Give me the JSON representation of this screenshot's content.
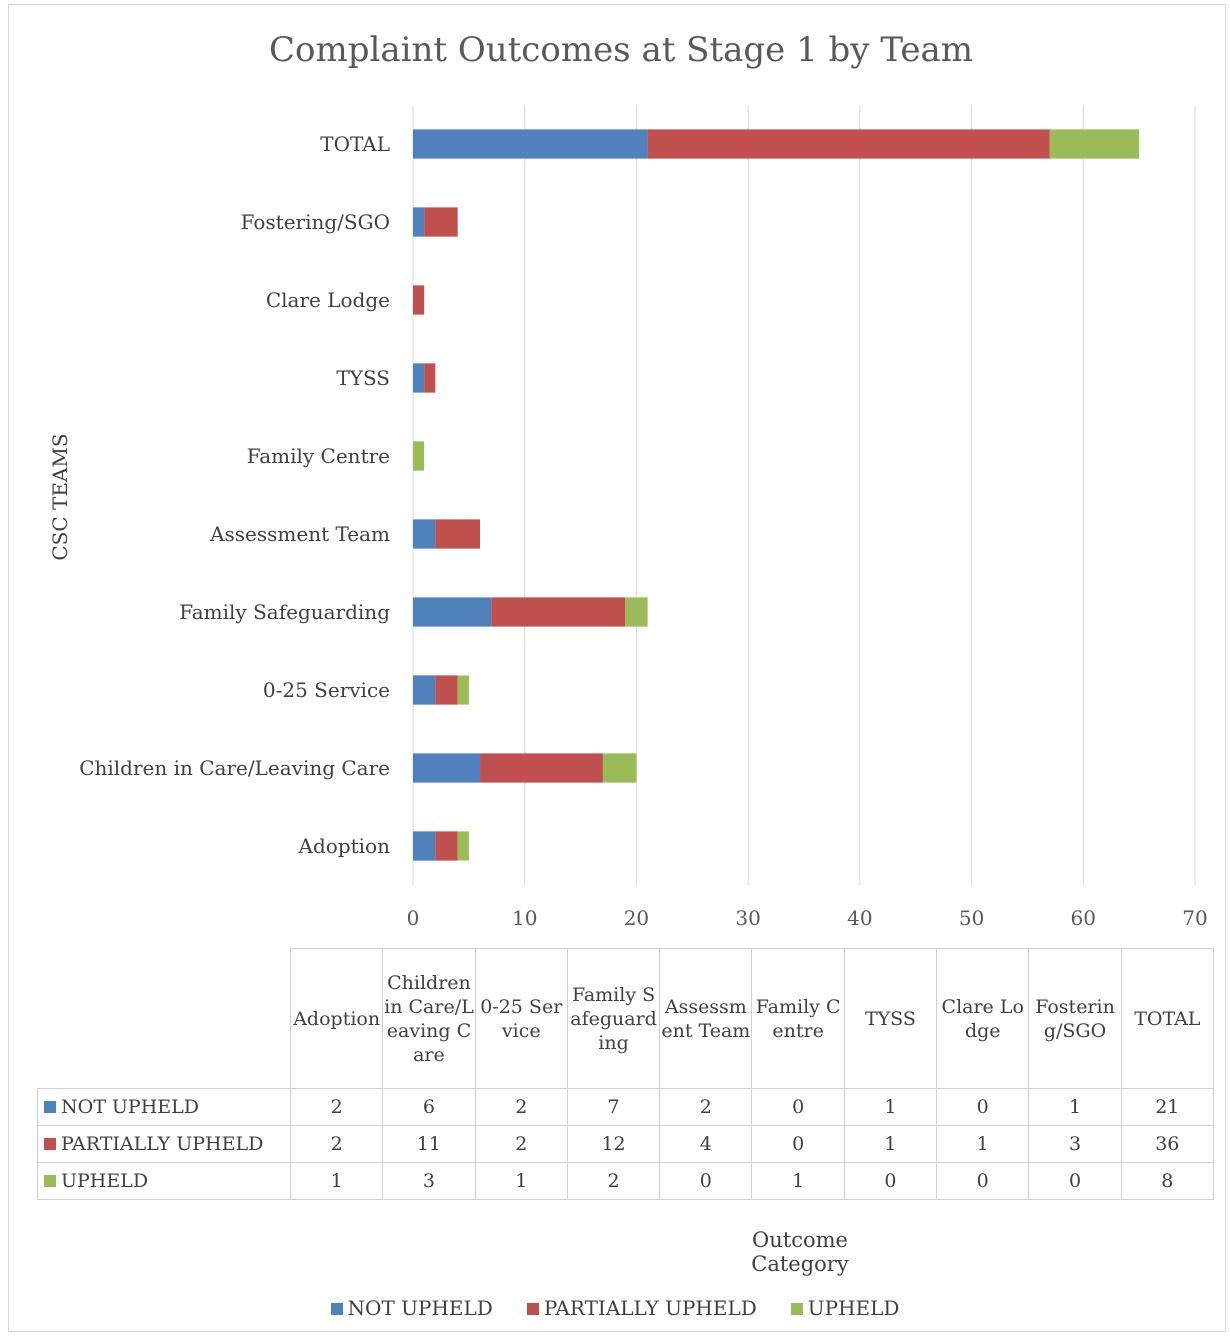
{
  "chart_data": {
    "type": "bar",
    "orientation": "horizontal",
    "stacked": true,
    "title": "Complaint Outcomes at Stage 1 by Team",
    "ylabel": "CSC TEAMS",
    "xlabel": "Outcome Category",
    "xlim": [
      0,
      70
    ],
    "xticks": [
      "0",
      "10",
      "20",
      "30",
      "40",
      "50",
      "60",
      "70"
    ],
    "grid": true,
    "legend_position": "bottom",
    "categories": [
      "Adoption",
      "Children in Care/Leaving Care",
      "0-25 Service",
      "Family Safeguarding",
      "Assessment Team",
      "Family Centre",
      "TYSS",
      "Clare Lodge",
      "Fostering/SGO",
      "TOTAL"
    ],
    "table_headers": [
      "Adoption",
      "Children in Care/Leaving Care",
      "0-25 Service",
      "Family Safeguarding",
      "Assessment Team",
      "Family Centre",
      "TYSS",
      "Clare Lodge",
      "Fostering/SGO",
      "TOTAL"
    ],
    "series": [
      {
        "name": "NOT UPHELD",
        "color": "#4f81bd",
        "values": [
          2,
          6,
          2,
          7,
          2,
          0,
          1,
          0,
          1,
          21
        ]
      },
      {
        "name": "PARTIALLY UPHELD",
        "color": "#c0504d",
        "values": [
          2,
          11,
          2,
          12,
          4,
          0,
          1,
          1,
          3,
          36
        ]
      },
      {
        "name": "UPHELD",
        "color": "#9bbb59",
        "values": [
          1,
          3,
          1,
          2,
          0,
          1,
          0,
          0,
          0,
          8
        ]
      }
    ]
  }
}
